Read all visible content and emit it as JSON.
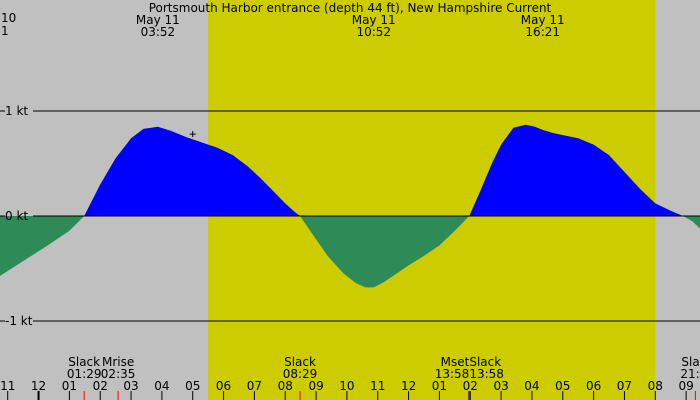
{
  "colors": {
    "night": "#c0c0c0",
    "day": "#cccc00",
    "flood": "#0000ff",
    "ebb": "#2e8b57",
    "grid": "#000000",
    "text": "#000000",
    "tick_red": "#ff0000",
    "tick_black": "#000000"
  },
  "chart_data": {
    "type": "area",
    "title": "Portsmouth Harbor entrance (depth 44 ft), New Hampshire Current",
    "xlabel": "",
    "ylabel": "",
    "x_unit": "hour of day",
    "xlim": [
      22.75,
      45.45
    ],
    "ylim": [
      -1.25,
      1.6
    ],
    "y_gridlines": [
      {
        "value": 1,
        "label": "1 kt"
      },
      {
        "value": 0,
        "label": "0 kt"
      },
      {
        "value": -1,
        "label": "-1 kt"
      }
    ],
    "daylight": {
      "start": 29.5,
      "end": 44.0
    },
    "header_corner": [
      "10",
      "1"
    ],
    "header_events": [
      {
        "x": 27.87,
        "date": "May 11",
        "time": "03:52"
      },
      {
        "x": 34.87,
        "date": "May 11",
        "time": "10:52"
      },
      {
        "x": 40.35,
        "date": "May 11",
        "time": "16:21"
      }
    ],
    "series": [
      {
        "x": [
          22.75,
          23.5,
          24.3,
          25.0,
          25.48,
          26.0,
          26.5,
          27.0,
          27.4,
          27.87,
          28.3,
          28.8,
          29.3,
          29.8,
          30.3,
          30.8,
          31.2,
          31.6,
          32.0,
          32.3,
          32.48,
          32.9,
          33.4,
          33.9,
          34.3,
          34.6,
          34.87,
          35.2,
          35.6,
          36.0,
          36.5,
          37.0,
          37.5,
          37.97,
          38.3,
          38.7,
          39.0,
          39.4,
          39.8,
          40.1,
          40.35,
          40.7,
          41.0,
          41.5,
          42.0,
          42.5,
          43.0,
          43.5,
          44.0,
          44.5,
          44.9,
          45.2,
          45.45
        ],
        "y": [
          -0.57,
          -0.43,
          -0.28,
          -0.14,
          0.0,
          0.3,
          0.55,
          0.74,
          0.83,
          0.85,
          0.81,
          0.75,
          0.7,
          0.65,
          0.58,
          0.47,
          0.36,
          0.24,
          0.12,
          0.04,
          0.0,
          -0.18,
          -0.39,
          -0.55,
          -0.64,
          -0.68,
          -0.68,
          -0.63,
          -0.55,
          -0.47,
          -0.38,
          -0.28,
          -0.14,
          0.0,
          0.22,
          0.5,
          0.68,
          0.84,
          0.87,
          0.85,
          0.82,
          0.79,
          0.77,
          0.74,
          0.68,
          0.58,
          0.42,
          0.26,
          0.12,
          0.05,
          0.0,
          -0.05,
          -0.12
        ]
      }
    ],
    "bottom_events": [
      {
        "x": 25.48,
        "label": "Slack",
        "time": "01:29",
        "align": "middle"
      },
      {
        "x": 26.58,
        "label": "Mrise",
        "time": "02:35",
        "align": "middle"
      },
      {
        "x": 32.48,
        "label": "Slack",
        "time": "08:29",
        "align": "middle"
      },
      {
        "x": 37.97,
        "label": "Mset",
        "time": "13:58",
        "align": "end"
      },
      {
        "x": 37.97,
        "label": "Slack",
        "time": "13:58",
        "align": "start"
      },
      {
        "x": 45.25,
        "label": "Slac",
        "time": "21:1",
        "align": "middle"
      }
    ],
    "hour_ticks": [
      {
        "x": 23,
        "label": "11"
      },
      {
        "x": 24,
        "label": "12"
      },
      {
        "x": 25,
        "label": "01"
      },
      {
        "x": 26,
        "label": "02"
      },
      {
        "x": 27,
        "label": "03"
      },
      {
        "x": 28,
        "label": "04"
      },
      {
        "x": 29,
        "label": "05"
      },
      {
        "x": 30,
        "label": "06"
      },
      {
        "x": 31,
        "label": "07"
      },
      {
        "x": 32,
        "label": "08"
      },
      {
        "x": 33,
        "label": "09"
      },
      {
        "x": 34,
        "label": "10"
      },
      {
        "x": 35,
        "label": "11"
      },
      {
        "x": 36,
        "label": "12"
      },
      {
        "x": 37,
        "label": "01"
      },
      {
        "x": 38,
        "label": "02"
      },
      {
        "x": 39,
        "label": "03"
      },
      {
        "x": 40,
        "label": "04"
      },
      {
        "x": 41,
        "label": "05"
      },
      {
        "x": 42,
        "label": "06"
      },
      {
        "x": 43,
        "label": "07"
      },
      {
        "x": 44,
        "label": "08"
      },
      {
        "x": 45,
        "label": "09"
      }
    ],
    "event_ticks": [
      {
        "x": 24.0,
        "color": "black"
      },
      {
        "x": 25.48,
        "color": "red"
      },
      {
        "x": 26.58,
        "color": "red"
      },
      {
        "x": 32.48,
        "color": "red"
      },
      {
        "x": 37.97,
        "color": "black"
      },
      {
        "x": 37.97,
        "color": "red"
      },
      {
        "x": 45.3,
        "color": "red"
      }
    ]
  }
}
